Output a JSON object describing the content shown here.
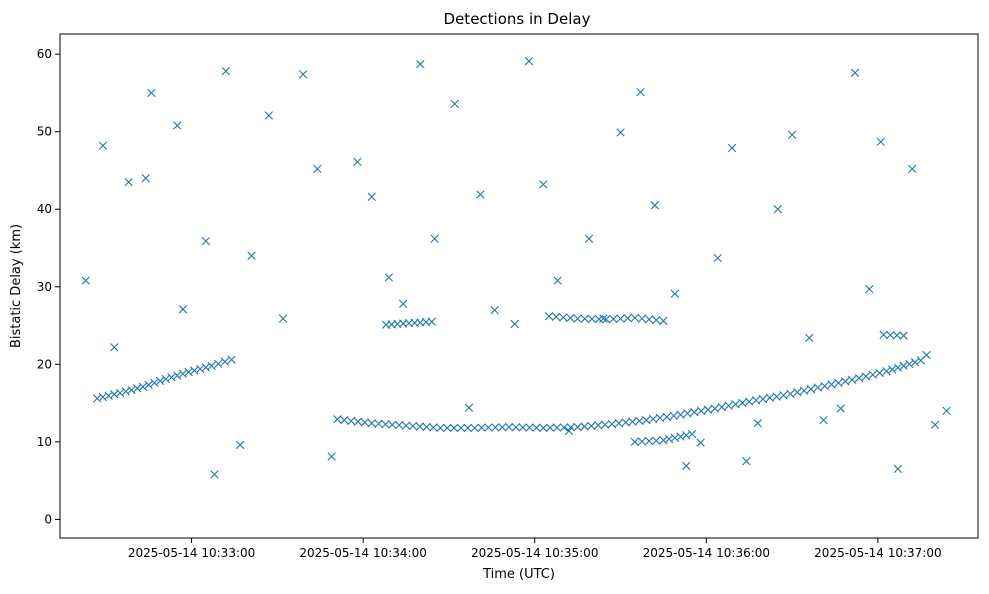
{
  "chart_data": {
    "type": "scatter",
    "title": "Detections in Delay",
    "xlabel": "Time (UTC)",
    "ylabel": "Bistatic Delay (km)",
    "x_axis_type": "datetime",
    "x_tick_labels": [
      "2025-05-14 10:33:00",
      "2025-05-14 10:34:00",
      "2025-05-14 10:35:00",
      "2025-05-14 10:36:00",
      "2025-05-14 10:37:00"
    ],
    "xlim": [
      "2025-05-14 10:32:14",
      "2025-05-14 10:37:35"
    ],
    "y_ticks": [
      0,
      10,
      20,
      30,
      40,
      50,
      60
    ],
    "ylim": [
      -2.4,
      62.6
    ],
    "grid": false,
    "legend": null,
    "marker": "x",
    "color": "#1f77b4",
    "trend_segments": [
      {
        "x": [
          "2025-05-14 10:32:27",
          "2025-05-14 10:32:35",
          "2025-05-14 10:32:43",
          "2025-05-14 10:32:51",
          "2025-05-14 10:32:59",
          "2025-05-14 10:33:07",
          "2025-05-14 10:33:14"
        ],
        "y": [
          15.6,
          16.3,
          17.1,
          18.1,
          19.0,
          19.8,
          20.6
        ]
      },
      {
        "x": [
          "2025-05-14 10:33:51",
          "2025-05-14 10:34:03",
          "2025-05-14 10:34:15",
          "2025-05-14 10:34:27",
          "2025-05-14 10:34:39",
          "2025-05-14 10:34:51",
          "2025-05-14 10:35:03",
          "2025-05-14 10:35:15",
          "2025-05-14 10:35:27",
          "2025-05-14 10:35:39",
          "2025-05-14 10:35:51",
          "2025-05-14 10:36:03",
          "2025-05-14 10:36:15",
          "2025-05-14 10:36:27",
          "2025-05-14 10:36:39",
          "2025-05-14 10:36:51",
          "2025-05-14 10:37:03",
          "2025-05-14 10:37:15"
        ],
        "y": [
          12.9,
          12.4,
          12.1,
          11.8,
          11.8,
          11.9,
          11.8,
          11.9,
          12.3,
          12.8,
          13.5,
          14.3,
          15.2,
          16.0,
          17.0,
          18.0,
          19.1,
          20.5
        ]
      },
      {
        "x": [
          "2025-05-14 10:34:08",
          "2025-05-14 10:34:16",
          "2025-05-14 10:34:24"
        ],
        "y": [
          25.1,
          25.3,
          25.5
        ]
      },
      {
        "x": [
          "2025-05-14 10:35:05",
          "2025-05-14 10:35:15",
          "2025-05-14 10:35:25",
          "2025-05-14 10:35:35",
          "2025-05-14 10:35:45"
        ],
        "y": [
          26.2,
          25.9,
          25.8,
          26.0,
          25.6
        ]
      },
      {
        "x": [
          "2025-05-14 10:37:02",
          "2025-05-14 10:37:09"
        ],
        "y": [
          23.8,
          23.7
        ]
      },
      {
        "x": [
          "2025-05-14 10:35:35",
          "2025-05-14 10:35:45",
          "2025-05-14 10:35:55"
        ],
        "y": [
          10.0,
          10.2,
          11.0
        ]
      }
    ],
    "scatter_points": {
      "x": [
        "2025-05-14 10:32:29",
        "2025-05-14 10:32:38",
        "2025-05-14 10:32:46",
        "2025-05-14 10:32:55",
        "2025-05-14 10:33:05",
        "2025-05-14 10:33:12",
        "2025-05-14 10:33:21",
        "2025-05-14 10:33:32",
        "2025-05-14 10:33:44",
        "2025-05-14 10:33:58",
        "2025-05-14 10:34:09",
        "2025-05-14 10:34:20",
        "2025-05-14 10:34:32",
        "2025-05-14 10:34:41",
        "2025-05-14 10:34:53",
        "2025-05-14 10:35:03",
        "2025-05-14 10:35:12",
        "2025-05-14 10:35:24",
        "2025-05-14 10:35:37",
        "2025-05-14 10:35:49",
        "2025-05-14 10:35:58",
        "2025-05-14 10:36:09",
        "2025-05-14 10:36:18",
        "2025-05-14 10:36:30",
        "2025-05-14 10:36:41",
        "2025-05-14 10:36:52",
        "2025-05-14 10:37:01",
        "2025-05-14 10:37:12",
        "2025-05-14 10:37:20",
        "2025-05-14 10:32:23",
        "2025-05-14 10:32:33",
        "2025-05-14 10:32:44",
        "2025-05-14 10:32:57",
        "2025-05-14 10:33:08",
        "2025-05-14 10:33:17",
        "2025-05-14 10:33:27",
        "2025-05-14 10:33:39",
        "2025-05-14 10:33:49",
        "2025-05-14 10:34:03",
        "2025-05-14 10:34:14",
        "2025-05-14 10:34:25",
        "2025-05-14 10:34:37",
        "2025-05-14 10:34:46",
        "2025-05-14 10:34:58",
        "2025-05-14 10:35:08",
        "2025-05-14 10:35:19",
        "2025-05-14 10:35:30",
        "2025-05-14 10:35:42",
        "2025-05-14 10:35:53",
        "2025-05-14 10:36:04",
        "2025-05-14 10:36:14",
        "2025-05-14 10:36:25",
        "2025-05-14 10:36:36",
        "2025-05-14 10:36:47",
        "2025-05-14 10:36:57",
        "2025-05-14 10:37:07",
        "2025-05-14 10:37:17",
        "2025-05-14 10:37:24"
      ],
      "y": [
        48.2,
        43.5,
        55.0,
        50.8,
        35.9,
        57.8,
        34.0,
        25.9,
        45.2,
        46.1,
        31.2,
        58.7,
        53.6,
        41.9,
        25.2,
        43.2,
        11.4,
        25.9,
        55.1,
        29.1,
        9.9,
        47.9,
        12.4,
        49.6,
        12.8,
        57.6,
        48.7,
        45.2,
        12.2,
        30.8,
        22.2,
        44.0,
        27.1,
        5.8,
        9.6,
        52.1,
        57.4,
        8.1,
        41.6,
        27.8,
        36.2,
        14.4,
        27.0,
        59.1,
        30.8,
        36.2,
        49.9,
        40.5,
        6.9,
        33.7,
        7.5,
        40.0,
        23.4,
        14.3,
        29.7,
        6.5,
        21.2,
        14.0
      ]
    }
  }
}
